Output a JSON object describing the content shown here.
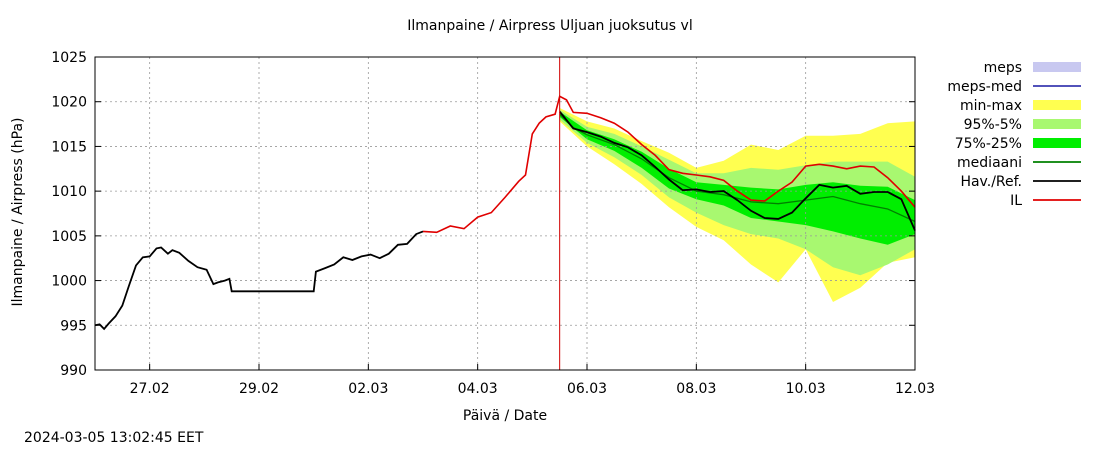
{
  "timestamp": "2024-03-05 13:02:45 EET",
  "chart_data": {
    "type": "line",
    "title": "Ilmanpaine / Airpress Uljuan juoksutus vl",
    "xlabel": "Päivä / Date",
    "ylabel": "Ilmanpaine / Airpress (hPa)",
    "ylim": [
      990,
      1025
    ],
    "yticks": [
      990,
      995,
      1000,
      1005,
      1010,
      1015,
      1020,
      1025
    ],
    "xlim": [
      "2024-02-26 00:00",
      "2024-03-12 00:00"
    ],
    "xticks": [
      {
        "at": "2024-02-27 00:00",
        "label": "27.02"
      },
      {
        "at": "2024-02-29 00:00",
        "label": "29.02"
      },
      {
        "at": "2024-03-02 00:00",
        "label": "02.03"
      },
      {
        "at": "2024-03-04 00:00",
        "label": "04.03"
      },
      {
        "at": "2024-03-06 00:00",
        "label": "06.03"
      },
      {
        "at": "2024-03-08 00:00",
        "label": "08.03"
      },
      {
        "at": "2024-03-10 00:00",
        "label": "10.03"
      },
      {
        "at": "2024-03-12 00:00",
        "label": "12.03"
      }
    ],
    "grid": true,
    "now_marker": "2024-03-05 12:00",
    "legend_position": "right",
    "legend": [
      {
        "key": "meps",
        "label": "meps",
        "style": "band",
        "color": "#c8c8f0"
      },
      {
        "key": "meps_med",
        "label": "meps-med",
        "style": "line",
        "color": "#3a3ab0"
      },
      {
        "key": "minmax",
        "label": "min-max",
        "style": "band",
        "color": "#ffff50"
      },
      {
        "key": "p95_5",
        "label": "95%-5%",
        "style": "band",
        "color": "#a8f870"
      },
      {
        "key": "p75_25",
        "label": "75%-25%",
        "style": "band",
        "color": "#00ee00"
      },
      {
        "key": "median",
        "label": "mediaani",
        "style": "line",
        "color": "#008000"
      },
      {
        "key": "observed",
        "label": "Hav./Ref.",
        "style": "line",
        "color": "#000000"
      },
      {
        "key": "il",
        "label": "IL",
        "style": "line",
        "color": "#e00000"
      }
    ],
    "series": {
      "observed": [
        [
          "2024-02-26 00:00",
          995.0
        ],
        [
          "2024-02-26 02:00",
          995.1
        ],
        [
          "2024-02-26 04:00",
          994.6
        ],
        [
          "2024-02-26 06:00",
          995.2
        ],
        [
          "2024-02-26 09:00",
          996.0
        ],
        [
          "2024-02-26 12:00",
          997.2
        ],
        [
          "2024-02-26 15:00",
          999.5
        ],
        [
          "2024-02-26 18:00",
          1001.7
        ],
        [
          "2024-02-26 21:00",
          1002.6
        ],
        [
          "2024-02-27 00:00",
          1002.7
        ],
        [
          "2024-02-27 03:00",
          1003.6
        ],
        [
          "2024-02-27 05:00",
          1003.7
        ],
        [
          "2024-02-27 08:00",
          1003.0
        ],
        [
          "2024-02-27 10:00",
          1003.4
        ],
        [
          "2024-02-27 13:00",
          1003.1
        ],
        [
          "2024-02-27 17:00",
          1002.2
        ],
        [
          "2024-02-27 21:00",
          1001.5
        ],
        [
          "2024-02-28 01:00",
          1001.2
        ],
        [
          "2024-02-28 04:00",
          999.6
        ],
        [
          "2024-02-28 06:00",
          999.8
        ],
        [
          "2024-02-28 09:00",
          1000.0
        ],
        [
          "2024-02-28 11:00",
          1000.2
        ],
        [
          "2024-02-28 12:00",
          998.8
        ],
        [
          "2024-02-29 06:00",
          998.8
        ],
        [
          "2024-02-29 18:00",
          998.8
        ],
        [
          "2024-03-01 00:00",
          998.8
        ],
        [
          "2024-03-01 01:00",
          1001.0
        ],
        [
          "2024-03-01 05:00",
          1001.4
        ],
        [
          "2024-03-01 09:00",
          1001.8
        ],
        [
          "2024-03-01 13:00",
          1002.6
        ],
        [
          "2024-03-01 17:00",
          1002.3
        ],
        [
          "2024-03-01 21:00",
          1002.7
        ],
        [
          "2024-03-02 01:00",
          1002.9
        ],
        [
          "2024-03-02 05:00",
          1002.5
        ],
        [
          "2024-03-02 09:00",
          1003.0
        ],
        [
          "2024-03-02 13:00",
          1004.0
        ],
        [
          "2024-03-02 17:00",
          1004.1
        ],
        [
          "2024-03-02 21:00",
          1005.2
        ],
        [
          "2024-03-03 00:00",
          1005.5
        ],
        [
          "2024-03-05 12:00",
          1018.9
        ],
        [
          "2024-03-05 18:00",
          1017.0
        ],
        [
          "2024-03-06 00:00",
          1016.6
        ],
        [
          "2024-03-06 06:00",
          1016.1
        ],
        [
          "2024-03-06 12:00",
          1015.4
        ],
        [
          "2024-03-06 18:00",
          1014.9
        ],
        [
          "2024-03-07 00:00",
          1014.0
        ],
        [
          "2024-03-07 06:00",
          1012.7
        ],
        [
          "2024-03-07 12:00",
          1011.3
        ],
        [
          "2024-03-07 18:00",
          1010.1
        ],
        [
          "2024-03-08 00:00",
          1010.2
        ],
        [
          "2024-03-08 06:00",
          1009.9
        ],
        [
          "2024-03-08 12:00",
          1010.0
        ],
        [
          "2024-03-08 18:00",
          1009.0
        ],
        [
          "2024-03-09 00:00",
          1007.8
        ],
        [
          "2024-03-09 06:00",
          1007.0
        ],
        [
          "2024-03-09 12:00",
          1006.9
        ],
        [
          "2024-03-09 18:00",
          1007.6
        ],
        [
          "2024-03-10 00:00",
          1009.2
        ],
        [
          "2024-03-10 06:00",
          1010.7
        ],
        [
          "2024-03-10 12:00",
          1010.4
        ],
        [
          "2024-03-10 18:00",
          1010.6
        ],
        [
          "2024-03-11 00:00",
          1009.7
        ],
        [
          "2024-03-11 06:00",
          1009.9
        ],
        [
          "2024-03-11 12:00",
          1009.9
        ],
        [
          "2024-03-11 18:00",
          1009.1
        ],
        [
          "2024-03-12 00:00",
          1005.6
        ]
      ],
      "il": [
        [
          "2024-03-03 00:00",
          1005.5
        ],
        [
          "2024-03-03 06:00",
          1005.4
        ],
        [
          "2024-03-03 12:00",
          1006.1
        ],
        [
          "2024-03-03 18:00",
          1005.8
        ],
        [
          "2024-03-04 00:00",
          1007.1
        ],
        [
          "2024-03-04 06:00",
          1007.6
        ],
        [
          "2024-03-04 12:00",
          1009.3
        ],
        [
          "2024-03-04 18:00",
          1011.1
        ],
        [
          "2024-03-04 21:00",
          1011.8
        ],
        [
          "2024-03-05 00:00",
          1016.4
        ],
        [
          "2024-03-05 03:00",
          1017.6
        ],
        [
          "2024-03-05 06:00",
          1018.3
        ],
        [
          "2024-03-05 10:00",
          1018.6
        ],
        [
          "2024-03-05 12:00",
          1020.6
        ],
        [
          "2024-03-05 15:00",
          1020.2
        ],
        [
          "2024-03-05 18:00",
          1018.8
        ],
        [
          "2024-03-06 00:00",
          1018.7
        ],
        [
          "2024-03-06 06:00",
          1018.2
        ],
        [
          "2024-03-06 12:00",
          1017.6
        ],
        [
          "2024-03-06 18:00",
          1016.6
        ],
        [
          "2024-03-07 00:00",
          1015.2
        ],
        [
          "2024-03-07 06:00",
          1014.0
        ],
        [
          "2024-03-07 12:00",
          1012.4
        ],
        [
          "2024-03-07 18:00",
          1012.0
        ],
        [
          "2024-03-08 00:00",
          1011.8
        ],
        [
          "2024-03-08 06:00",
          1011.6
        ],
        [
          "2024-03-08 12:00",
          1011.2
        ],
        [
          "2024-03-08 18:00",
          1010.0
        ],
        [
          "2024-03-09 00:00",
          1009.0
        ],
        [
          "2024-03-09 06:00",
          1008.9
        ],
        [
          "2024-03-09 12:00",
          1010.0
        ],
        [
          "2024-03-09 18:00",
          1011.0
        ],
        [
          "2024-03-10 00:00",
          1012.8
        ],
        [
          "2024-03-10 06:00",
          1013.0
        ],
        [
          "2024-03-10 12:00",
          1012.8
        ],
        [
          "2024-03-10 18:00",
          1012.5
        ],
        [
          "2024-03-11 00:00",
          1012.8
        ],
        [
          "2024-03-11 06:00",
          1012.7
        ],
        [
          "2024-03-11 12:00",
          1011.5
        ],
        [
          "2024-03-11 18:00",
          1010.0
        ],
        [
          "2024-03-12 00:00",
          1008.2
        ]
      ],
      "median": [
        [
          "2024-03-05 12:00",
          1018.6
        ],
        [
          "2024-03-05 18:00",
          1017.1
        ],
        [
          "2024-03-06 00:00",
          1016.3
        ],
        [
          "2024-03-06 12:00",
          1015.2
        ],
        [
          "2024-03-07 00:00",
          1013.6
        ],
        [
          "2024-03-07 12:00",
          1011.5
        ],
        [
          "2024-03-08 00:00",
          1010.0
        ],
        [
          "2024-03-08 12:00",
          1009.6
        ],
        [
          "2024-03-09 00:00",
          1008.8
        ],
        [
          "2024-03-09 12:00",
          1008.6
        ],
        [
          "2024-03-10 00:00",
          1009.0
        ],
        [
          "2024-03-10 12:00",
          1009.4
        ],
        [
          "2024-03-11 00:00",
          1008.6
        ],
        [
          "2024-03-11 12:00",
          1008.0
        ],
        [
          "2024-03-12 00:00",
          1006.6
        ]
      ],
      "p75_25": [
        [
          "2024-03-05 12:00",
          1018.9,
          1018.3
        ],
        [
          "2024-03-06 00:00",
          1016.8,
          1015.8
        ],
        [
          "2024-03-06 12:00",
          1015.8,
          1014.5
        ],
        [
          "2024-03-07 00:00",
          1014.4,
          1012.6
        ],
        [
          "2024-03-07 12:00",
          1012.5,
          1010.3
        ],
        [
          "2024-03-08 00:00",
          1011.0,
          1009.1
        ],
        [
          "2024-03-08 12:00",
          1010.7,
          1008.4
        ],
        [
          "2024-03-09 00:00",
          1010.4,
          1007.0
        ],
        [
          "2024-03-09 12:00",
          1010.2,
          1006.6
        ],
        [
          "2024-03-10 00:00",
          1010.7,
          1006.2
        ],
        [
          "2024-03-10 12:00",
          1011.0,
          1005.5
        ],
        [
          "2024-03-11 00:00",
          1010.6,
          1004.7
        ],
        [
          "2024-03-11 12:00",
          1010.5,
          1004.0
        ],
        [
          "2024-03-12 00:00",
          1009.0,
          1005.2
        ]
      ],
      "p95_5": [
        [
          "2024-03-05 12:00",
          1019.1,
          1018.0
        ],
        [
          "2024-03-06 00:00",
          1017.2,
          1015.4
        ],
        [
          "2024-03-06 12:00",
          1016.4,
          1013.8
        ],
        [
          "2024-03-07 00:00",
          1015.0,
          1011.8
        ],
        [
          "2024-03-07 12:00",
          1013.5,
          1009.3
        ],
        [
          "2024-03-08 00:00",
          1012.0,
          1007.6
        ],
        [
          "2024-03-08 12:00",
          1012.0,
          1006.2
        ],
        [
          "2024-03-09 00:00",
          1012.6,
          1005.2
        ],
        [
          "2024-03-09 12:00",
          1012.4,
          1004.7
        ],
        [
          "2024-03-10 00:00",
          1012.9,
          1003.5
        ],
        [
          "2024-03-10 12:00",
          1013.3,
          1001.5
        ],
        [
          "2024-03-11 00:00",
          1013.3,
          1000.6
        ],
        [
          "2024-03-11 12:00",
          1013.3,
          1001.8
        ],
        [
          "2024-03-12 00:00",
          1011.6,
          1003.5
        ]
      ],
      "minmax": [
        [
          "2024-03-05 12:00",
          1019.3,
          1017.8
        ],
        [
          "2024-03-06 00:00",
          1017.8,
          1015.0
        ],
        [
          "2024-03-06 12:00",
          1017.0,
          1013.0
        ],
        [
          "2024-03-07 00:00",
          1015.6,
          1010.8
        ],
        [
          "2024-03-07 12:00",
          1014.3,
          1008.2
        ],
        [
          "2024-03-08 00:00",
          1012.6,
          1006.0
        ],
        [
          "2024-03-08 12:00",
          1013.4,
          1004.5
        ],
        [
          "2024-03-09 00:00",
          1015.2,
          1001.8
        ],
        [
          "2024-03-09 12:00",
          1014.6,
          999.8
        ],
        [
          "2024-03-10 00:00",
          1016.2,
          1003.5
        ],
        [
          "2024-03-10 12:00",
          1016.2,
          997.6
        ],
        [
          "2024-03-11 00:00",
          1016.4,
          999.2
        ],
        [
          "2024-03-11 12:00",
          1017.6,
          1002.0
        ],
        [
          "2024-03-12 00:00",
          1017.8,
          1002.6
        ]
      ]
    }
  }
}
